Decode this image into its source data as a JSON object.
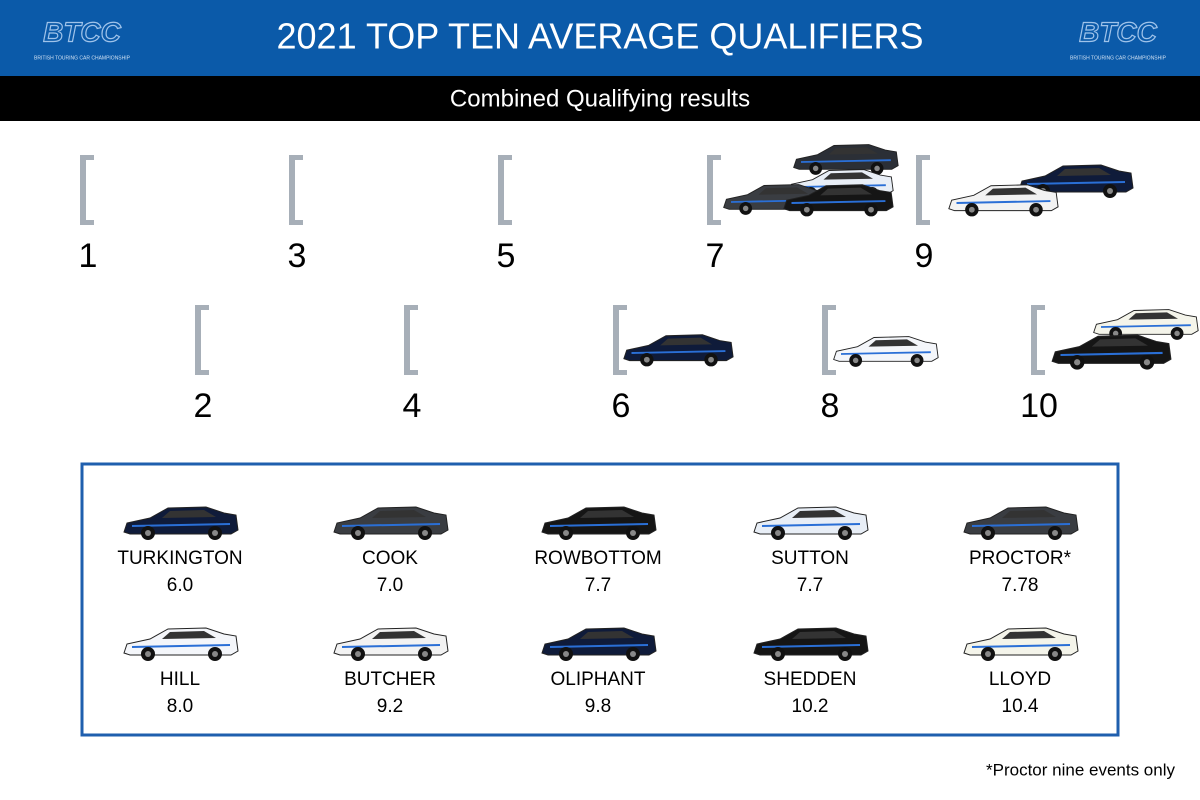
{
  "header": {
    "title": "2021 TOP TEN AVERAGE QUALIFIERS",
    "logo_mark": "BTCC",
    "logo_caption": "BRITISH TOURING CAR CHAMPIONSHIP"
  },
  "subtitle": "Combined Qualifying results",
  "positions": [
    1,
    2,
    3,
    4,
    5,
    6,
    7,
    8,
    9,
    10
  ],
  "drivers": [
    {
      "name": "TURKINGTON",
      "average": "6.0"
    },
    {
      "name": "COOK",
      "average": "7.0"
    },
    {
      "name": "ROWBOTTOM",
      "average": "7.7"
    },
    {
      "name": "SUTTON",
      "average": "7.7"
    },
    {
      "name": "PROCTOR*",
      "average": "7.78"
    },
    {
      "name": "HILL",
      "average": "8.0"
    },
    {
      "name": "BUTCHER",
      "average": "9.2"
    },
    {
      "name": "OLIPHANT",
      "average": "9.8"
    },
    {
      "name": "SHEDDEN",
      "average": "10.2"
    },
    {
      "name": "LLOYD",
      "average": "10.4"
    }
  ],
  "footnote": "*Proctor nine events only"
}
